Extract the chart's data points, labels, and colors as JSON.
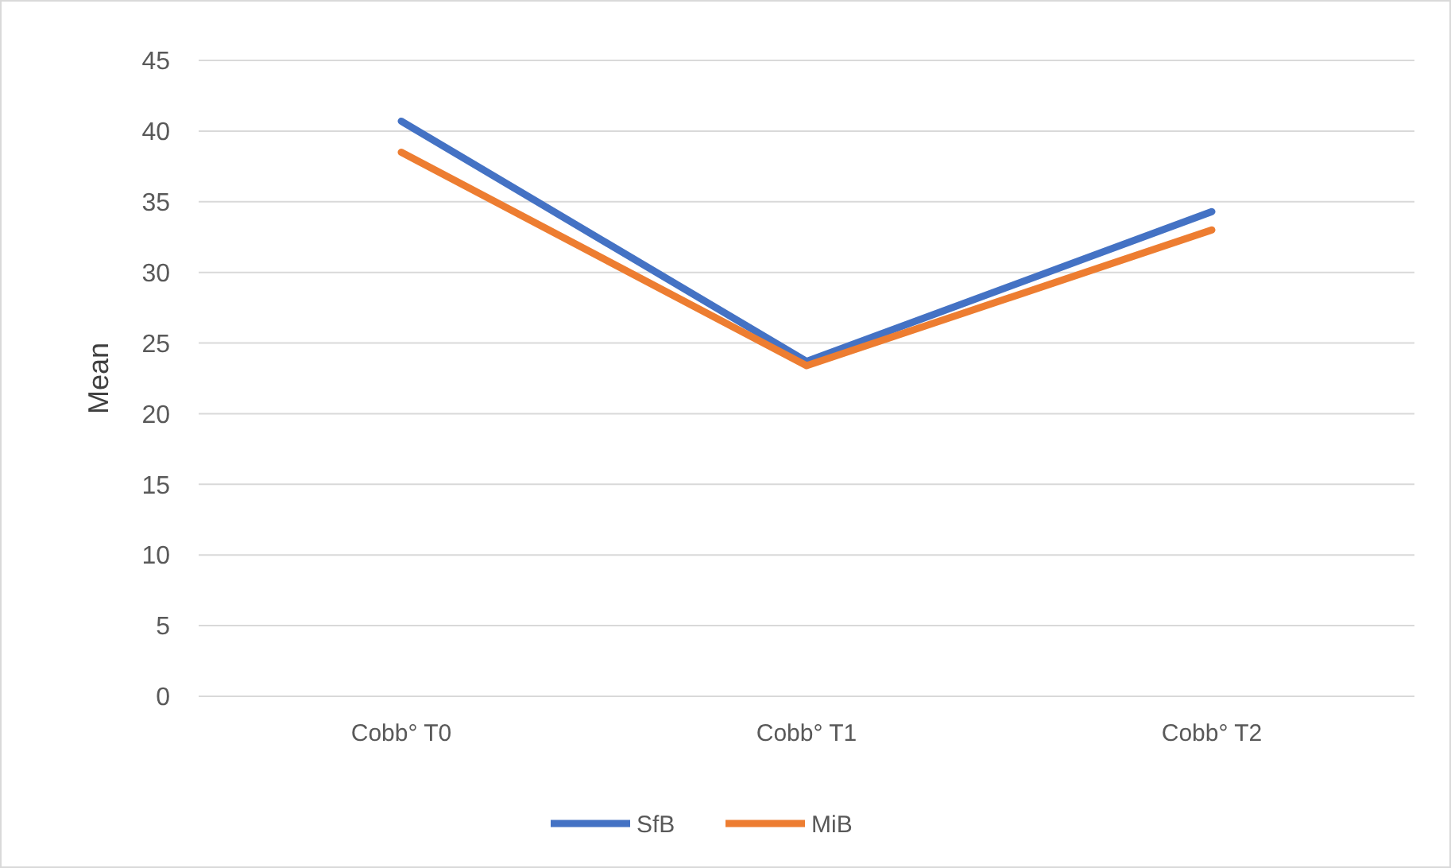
{
  "chart_data": {
    "type": "line",
    "ylabel": "Mean",
    "categories": [
      "Cobb° T0",
      "Cobb° T1",
      "Cobb° T2"
    ],
    "series": [
      {
        "name": "SfB",
        "color": "#4472c4",
        "values": [
          40.7,
          23.7,
          34.3
        ]
      },
      {
        "name": "MiB",
        "color": "#ed7d31",
        "values": [
          38.5,
          23.4,
          33.0
        ]
      }
    ],
    "ylim": [
      0,
      45
    ],
    "yticks": [
      0,
      5,
      10,
      15,
      20,
      25,
      30,
      35,
      40,
      45
    ],
    "grid": "y",
    "legend": "bottom",
    "marker": "none",
    "line_style": "solid"
  }
}
